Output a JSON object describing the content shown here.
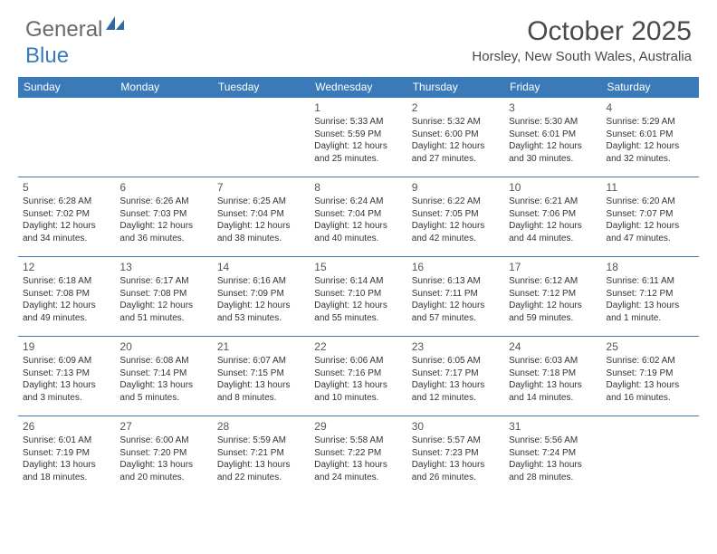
{
  "logo": {
    "text1": "General",
    "text2": "Blue"
  },
  "title": "October 2025",
  "location": "Horsley, New South Wales, Australia",
  "header_bg": "#3a7ab8",
  "days": [
    "Sunday",
    "Monday",
    "Tuesday",
    "Wednesday",
    "Thursday",
    "Friday",
    "Saturday"
  ],
  "weeks": [
    [
      null,
      null,
      null,
      {
        "n": "1",
        "sr": "5:33 AM",
        "ss": "5:59 PM",
        "dl": "12 hours and 25 minutes."
      },
      {
        "n": "2",
        "sr": "5:32 AM",
        "ss": "6:00 PM",
        "dl": "12 hours and 27 minutes."
      },
      {
        "n": "3",
        "sr": "5:30 AM",
        "ss": "6:01 PM",
        "dl": "12 hours and 30 minutes."
      },
      {
        "n": "4",
        "sr": "5:29 AM",
        "ss": "6:01 PM",
        "dl": "12 hours and 32 minutes."
      }
    ],
    [
      {
        "n": "5",
        "sr": "6:28 AM",
        "ss": "7:02 PM",
        "dl": "12 hours and 34 minutes."
      },
      {
        "n": "6",
        "sr": "6:26 AM",
        "ss": "7:03 PM",
        "dl": "12 hours and 36 minutes."
      },
      {
        "n": "7",
        "sr": "6:25 AM",
        "ss": "7:04 PM",
        "dl": "12 hours and 38 minutes."
      },
      {
        "n": "8",
        "sr": "6:24 AM",
        "ss": "7:04 PM",
        "dl": "12 hours and 40 minutes."
      },
      {
        "n": "9",
        "sr": "6:22 AM",
        "ss": "7:05 PM",
        "dl": "12 hours and 42 minutes."
      },
      {
        "n": "10",
        "sr": "6:21 AM",
        "ss": "7:06 PM",
        "dl": "12 hours and 44 minutes."
      },
      {
        "n": "11",
        "sr": "6:20 AM",
        "ss": "7:07 PM",
        "dl": "12 hours and 47 minutes."
      }
    ],
    [
      {
        "n": "12",
        "sr": "6:18 AM",
        "ss": "7:08 PM",
        "dl": "12 hours and 49 minutes."
      },
      {
        "n": "13",
        "sr": "6:17 AM",
        "ss": "7:08 PM",
        "dl": "12 hours and 51 minutes."
      },
      {
        "n": "14",
        "sr": "6:16 AM",
        "ss": "7:09 PM",
        "dl": "12 hours and 53 minutes."
      },
      {
        "n": "15",
        "sr": "6:14 AM",
        "ss": "7:10 PM",
        "dl": "12 hours and 55 minutes."
      },
      {
        "n": "16",
        "sr": "6:13 AM",
        "ss": "7:11 PM",
        "dl": "12 hours and 57 minutes."
      },
      {
        "n": "17",
        "sr": "6:12 AM",
        "ss": "7:12 PM",
        "dl": "12 hours and 59 minutes."
      },
      {
        "n": "18",
        "sr": "6:11 AM",
        "ss": "7:12 PM",
        "dl": "13 hours and 1 minute."
      }
    ],
    [
      {
        "n": "19",
        "sr": "6:09 AM",
        "ss": "7:13 PM",
        "dl": "13 hours and 3 minutes."
      },
      {
        "n": "20",
        "sr": "6:08 AM",
        "ss": "7:14 PM",
        "dl": "13 hours and 5 minutes."
      },
      {
        "n": "21",
        "sr": "6:07 AM",
        "ss": "7:15 PM",
        "dl": "13 hours and 8 minutes."
      },
      {
        "n": "22",
        "sr": "6:06 AM",
        "ss": "7:16 PM",
        "dl": "13 hours and 10 minutes."
      },
      {
        "n": "23",
        "sr": "6:05 AM",
        "ss": "7:17 PM",
        "dl": "13 hours and 12 minutes."
      },
      {
        "n": "24",
        "sr": "6:03 AM",
        "ss": "7:18 PM",
        "dl": "13 hours and 14 minutes."
      },
      {
        "n": "25",
        "sr": "6:02 AM",
        "ss": "7:19 PM",
        "dl": "13 hours and 16 minutes."
      }
    ],
    [
      {
        "n": "26",
        "sr": "6:01 AM",
        "ss": "7:19 PM",
        "dl": "13 hours and 18 minutes."
      },
      {
        "n": "27",
        "sr": "6:00 AM",
        "ss": "7:20 PM",
        "dl": "13 hours and 20 minutes."
      },
      {
        "n": "28",
        "sr": "5:59 AM",
        "ss": "7:21 PM",
        "dl": "13 hours and 22 minutes."
      },
      {
        "n": "29",
        "sr": "5:58 AM",
        "ss": "7:22 PM",
        "dl": "13 hours and 24 minutes."
      },
      {
        "n": "30",
        "sr": "5:57 AM",
        "ss": "7:23 PM",
        "dl": "13 hours and 26 minutes."
      },
      {
        "n": "31",
        "sr": "5:56 AM",
        "ss": "7:24 PM",
        "dl": "13 hours and 28 minutes."
      },
      null
    ]
  ],
  "labels": {
    "sunrise": "Sunrise: ",
    "sunset": "Sunset: ",
    "daylight": "Daylight: "
  }
}
